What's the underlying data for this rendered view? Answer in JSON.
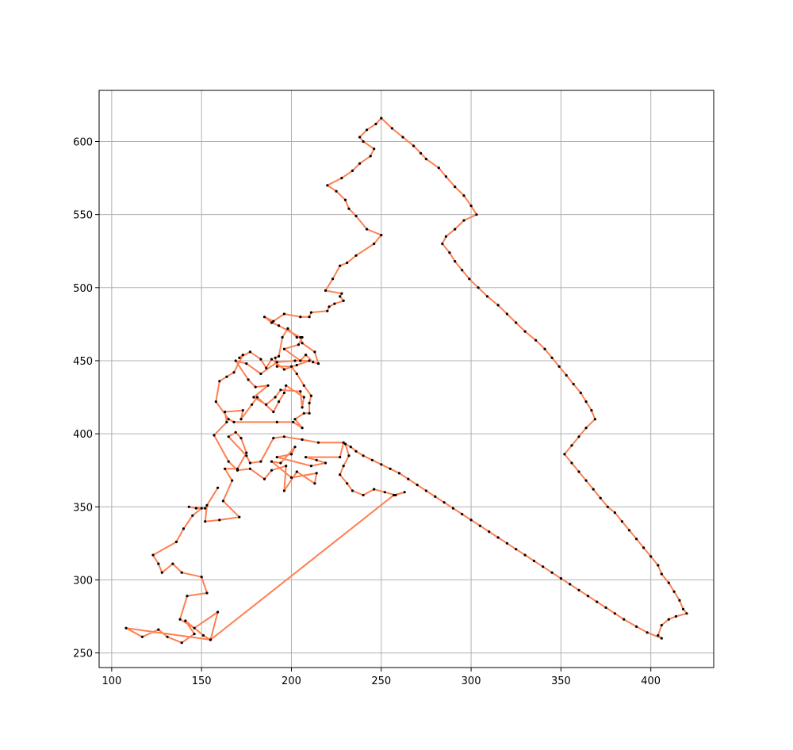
{
  "chart_data": {
    "type": "line",
    "title": "",
    "xlabel": "",
    "ylabel": "",
    "xlim": [
      93,
      435
    ],
    "ylim": [
      240,
      635
    ],
    "grid": true,
    "x_ticks": [
      100,
      150,
      200,
      250,
      300,
      350,
      400
    ],
    "y_ticks": [
      250,
      300,
      350,
      400,
      450,
      500,
      550,
      600
    ],
    "route_color": "#ff7f50",
    "point_color": "#000000",
    "series": [
      {
        "closed": true,
        "points": [
          [
            108,
            267
          ],
          [
            117,
            261
          ],
          [
            126,
            266
          ],
          [
            131,
            261
          ],
          [
            139,
            257
          ],
          [
            146,
            263
          ],
          [
            141,
            272
          ],
          [
            151,
            262
          ],
          [
            155,
            259
          ],
          [
            159,
            278
          ],
          [
            146,
            267
          ],
          [
            138,
            273
          ],
          [
            142,
            289
          ],
          [
            153,
            291
          ],
          [
            150,
            302
          ],
          [
            139,
            305
          ],
          [
            134,
            311
          ],
          [
            128,
            305
          ],
          [
            126,
            311
          ],
          [
            123,
            317
          ],
          [
            136,
            326
          ],
          [
            140,
            335
          ],
          [
            145,
            344
          ],
          [
            150,
            349
          ],
          [
            143,
            350
          ],
          [
            147,
            349
          ],
          [
            152,
            349
          ],
          [
            159,
            363
          ],
          [
            153,
            351
          ],
          [
            152,
            340
          ],
          [
            160,
            341
          ],
          [
            171,
            343
          ],
          [
            162,
            354
          ],
          [
            167,
            368
          ],
          [
            163,
            376
          ],
          [
            170,
            376
          ],
          [
            175,
            387
          ],
          [
            172,
            397
          ],
          [
            169,
            401
          ],
          [
            165,
            398
          ],
          [
            175,
            385
          ],
          [
            177,
            380
          ],
          [
            183,
            381
          ],
          [
            190,
            397
          ],
          [
            196,
            398
          ],
          [
            206,
            396
          ],
          [
            215,
            394
          ],
          [
            229,
            394
          ],
          [
            227,
            384
          ],
          [
            208,
            384
          ],
          [
            214,
            382
          ],
          [
            219,
            380
          ],
          [
            211,
            378
          ],
          [
            192,
            384
          ],
          [
            200,
            386
          ],
          [
            202,
            391
          ],
          [
            194,
            380
          ],
          [
            189,
            381
          ],
          [
            200,
            370
          ],
          [
            214,
            373
          ],
          [
            213,
            366
          ],
          [
            203,
            374
          ],
          [
            196,
            361
          ],
          [
            197,
            378
          ],
          [
            189,
            375
          ],
          [
            185,
            369
          ],
          [
            177,
            376
          ],
          [
            170,
            375
          ],
          [
            165,
            381
          ],
          [
            157,
            399
          ],
          [
            164,
            408
          ],
          [
            163,
            415
          ],
          [
            173,
            416
          ],
          [
            172,
            410
          ],
          [
            178,
            420
          ],
          [
            181,
            425
          ],
          [
            190,
            415
          ],
          [
            193,
            422
          ],
          [
            196,
            428
          ],
          [
            197,
            433
          ],
          [
            207,
            425
          ],
          [
            206,
            418
          ],
          [
            205,
            429
          ],
          [
            194,
            430
          ],
          [
            191,
            425
          ],
          [
            186,
            420
          ],
          [
            179,
            425
          ],
          [
            187,
            433
          ],
          [
            180,
            432
          ],
          [
            176,
            437
          ],
          [
            169,
            450
          ],
          [
            175,
            448
          ],
          [
            183,
            441
          ],
          [
            192,
            449
          ],
          [
            202,
            450
          ],
          [
            210,
            450
          ],
          [
            203,
            447
          ],
          [
            196,
            444
          ],
          [
            189,
            451
          ],
          [
            186,
            445
          ],
          [
            183,
            451
          ],
          [
            177,
            456
          ],
          [
            171,
            452
          ],
          [
            173,
            454
          ],
          [
            168,
            442
          ],
          [
            164,
            439
          ],
          [
            160,
            436
          ],
          [
            158,
            422
          ],
          [
            165,
            410
          ],
          [
            168,
            408
          ],
          [
            192,
            408
          ],
          [
            201,
            408
          ],
          [
            206,
            404
          ],
          [
            202,
            410
          ],
          [
            207,
            414
          ],
          [
            210,
            414
          ],
          [
            210,
            421
          ],
          [
            211,
            426
          ],
          [
            207,
            433
          ],
          [
            203,
            441
          ],
          [
            200,
            446
          ],
          [
            192,
            446
          ],
          [
            191,
            452
          ],
          [
            193,
            453
          ],
          [
            195,
            466
          ],
          [
            198,
            472
          ],
          [
            203,
            466
          ],
          [
            206,
            466
          ],
          [
            204,
            461
          ],
          [
            196,
            458
          ],
          [
            205,
            450
          ],
          [
            208,
            454
          ],
          [
            212,
            449
          ],
          [
            215,
            448
          ],
          [
            213,
            456
          ],
          [
            206,
            462
          ],
          [
            205,
            466
          ],
          [
            193,
            474
          ],
          [
            189,
            476
          ],
          [
            185,
            480
          ],
          [
            190,
            477
          ],
          [
            196,
            482
          ],
          [
            205,
            480
          ],
          [
            210,
            480
          ],
          [
            211,
            483
          ],
          [
            220,
            484
          ],
          [
            221,
            487
          ],
          [
            224,
            489
          ],
          [
            229,
            491
          ],
          [
            227,
            494
          ],
          [
            228,
            496
          ],
          [
            219,
            498
          ],
          [
            223,
            506
          ],
          [
            227,
            515
          ],
          [
            231,
            517
          ],
          [
            236,
            522
          ],
          [
            246,
            530
          ],
          [
            250,
            536
          ],
          [
            242,
            540
          ],
          [
            236,
            549
          ],
          [
            232,
            554
          ],
          [
            230,
            560
          ],
          [
            225,
            566
          ],
          [
            220,
            570
          ],
          [
            228,
            575
          ],
          [
            234,
            580
          ],
          [
            238,
            585
          ],
          [
            244,
            590
          ],
          [
            246,
            595
          ],
          [
            240,
            600
          ],
          [
            238,
            603
          ],
          [
            242,
            608
          ],
          [
            247,
            612
          ],
          [
            250,
            616
          ],
          [
            256,
            609
          ],
          [
            262,
            603
          ],
          [
            268,
            597
          ],
          [
            272,
            592
          ],
          [
            275,
            588
          ],
          [
            282,
            582
          ],
          [
            286,
            576
          ],
          [
            291,
            569
          ],
          [
            296,
            563
          ],
          [
            300,
            556
          ],
          [
            303,
            550
          ],
          [
            296,
            546
          ],
          [
            291,
            540
          ],
          [
            286,
            535
          ],
          [
            284,
            530
          ],
          [
            288,
            524
          ],
          [
            291,
            518
          ],
          [
            295,
            512
          ],
          [
            299,
            506
          ],
          [
            304,
            500
          ],
          [
            309,
            494
          ],
          [
            315,
            488
          ],
          [
            320,
            482
          ],
          [
            325,
            476
          ],
          [
            330,
            470
          ],
          [
            336,
            464
          ],
          [
            341,
            458
          ],
          [
            345,
            452
          ],
          [
            349,
            446
          ],
          [
            353,
            440
          ],
          [
            357,
            434
          ],
          [
            361,
            428
          ],
          [
            364,
            422
          ],
          [
            367,
            416
          ],
          [
            369,
            410
          ],
          [
            364,
            404
          ],
          [
            360,
            398
          ],
          [
            356,
            392
          ],
          [
            352,
            386
          ],
          [
            356,
            380
          ],
          [
            360,
            374
          ],
          [
            364,
            368
          ],
          [
            368,
            362
          ],
          [
            372,
            356
          ],
          [
            376,
            350
          ],
          [
            380,
            346
          ],
          [
            384,
            340
          ],
          [
            388,
            334
          ],
          [
            392,
            328
          ],
          [
            396,
            322
          ],
          [
            400,
            316
          ],
          [
            404,
            310
          ],
          [
            406,
            304
          ],
          [
            410,
            298
          ],
          [
            413,
            292
          ],
          [
            416,
            286
          ],
          [
            418,
            280
          ],
          [
            420,
            277
          ],
          [
            414,
            275
          ],
          [
            410,
            273
          ],
          [
            406,
            269
          ],
          [
            404,
            262
          ],
          [
            406,
            260
          ],
          [
            398,
            264
          ],
          [
            392,
            268
          ],
          [
            385,
            273
          ],
          [
            380,
            277
          ],
          [
            375,
            281
          ],
          [
            370,
            285
          ],
          [
            365,
            289
          ],
          [
            360,
            293
          ],
          [
            355,
            297
          ],
          [
            350,
            301
          ],
          [
            345,
            305
          ],
          [
            340,
            309
          ],
          [
            335,
            313
          ],
          [
            330,
            317
          ],
          [
            325,
            321
          ],
          [
            320,
            325
          ],
          [
            315,
            329
          ],
          [
            310,
            333
          ],
          [
            305,
            337
          ],
          [
            300,
            341
          ],
          [
            295,
            345
          ],
          [
            290,
            349
          ],
          [
            285,
            353
          ],
          [
            280,
            357
          ],
          [
            275,
            361
          ],
          [
            270,
            365
          ],
          [
            265,
            369
          ],
          [
            260,
            373
          ],
          [
            255,
            376
          ],
          [
            250,
            379
          ],
          [
            245,
            382
          ],
          [
            240,
            385
          ],
          [
            236,
            388
          ],
          [
            233,
            391
          ],
          [
            230,
            393
          ],
          [
            232,
            385
          ],
          [
            229,
            378
          ],
          [
            227,
            372
          ],
          [
            231,
            366
          ],
          [
            234,
            361
          ],
          [
            240,
            358
          ],
          [
            246,
            362
          ],
          [
            252,
            360
          ],
          [
            258,
            358
          ],
          [
            263,
            360
          ],
          [
            257,
            358
          ],
          [
            155,
            259
          ]
        ]
      }
    ]
  }
}
